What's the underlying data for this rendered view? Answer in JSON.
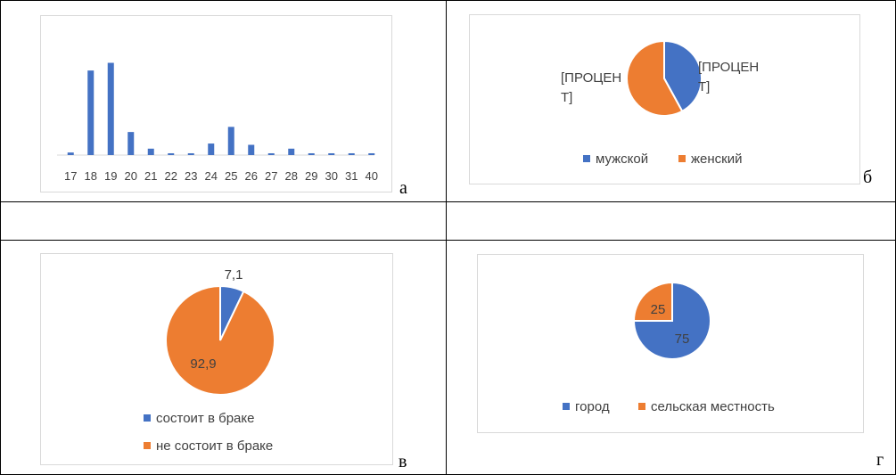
{
  "colors": {
    "blue": "#4472c4",
    "orange": "#ed7d31",
    "axis": "#d9d9d9",
    "text": "#404040"
  },
  "panel_letters": {
    "a": "а",
    "b": "б",
    "c": "в",
    "d": "г"
  },
  "chart_data": [
    {
      "type": "bar",
      "categories": [
        "17",
        "18",
        "19",
        "20",
        "21",
        "22",
        "23",
        "24",
        "25",
        "26",
        "27",
        "28",
        "29",
        "30",
        "31",
        "40"
      ],
      "values": [
        1,
        33,
        36,
        9,
        2.5,
        0.7,
        0.7,
        4.5,
        11,
        4,
        0.7,
        2.5,
        0.7,
        0.7,
        0.7,
        0.7
      ],
      "ylim": [
        0,
        40
      ],
      "grid": false,
      "legend": "none"
    },
    {
      "type": "pie",
      "labels": [
        "мужской",
        "женский"
      ],
      "values": [
        42,
        58
      ],
      "data_labels": [
        "[ПРОЦЕН Т]",
        "[ПРОЦЕН Т]"
      ],
      "legend": "bottom"
    },
    {
      "type": "pie",
      "labels": [
        "состоит в браке",
        "не состоит в браке"
      ],
      "values": [
        7.1,
        92.9
      ],
      "data_labels": [
        "7,1",
        "92,9"
      ],
      "legend": "bottom"
    },
    {
      "type": "pie",
      "labels": [
        "город",
        "сельская местность"
      ],
      "values": [
        75,
        25
      ],
      "data_labels": [
        "75",
        "25"
      ],
      "legend": "bottom"
    }
  ]
}
